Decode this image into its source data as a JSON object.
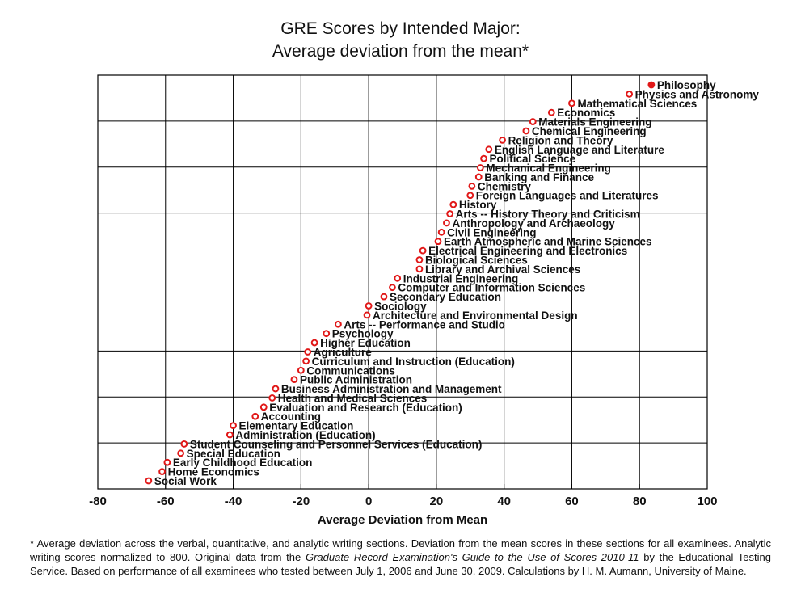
{
  "title_line1": "GRE Scores by Intended Major:",
  "title_line2": "Average deviation from the mean*",
  "footnote": {
    "part1": "* Average deviation across the verbal, quantitative, and analytic writing sections. Deviation from the mean scores in these sections for all examinees. Analytic writing scores normalized to 800. Original data from the ",
    "italic": "Graduate Record Examination's Guide to the Use of Scores 2010-11",
    "part2": " by the Educational Testing Service. Based on performance of all examinees who tested between July 1, 2006 and June 30, 2009. Calculations by H. M. Aumann, University of Maine."
  },
  "colors": {
    "marker": "#e11818",
    "grid": "#000000"
  },
  "chart_data": {
    "type": "scatter",
    "xlabel": "Average Deviation from Mean",
    "xlim": [
      -80,
      100
    ],
    "xticks": [
      -80,
      -60,
      -40,
      -20,
      0,
      20,
      40,
      60,
      80,
      100
    ],
    "grid": true,
    "highlighted": "Philosophy",
    "points": [
      {
        "label": "Philosophy",
        "x": 83.5
      },
      {
        "label": "Physics and Astronomy",
        "x": 77
      },
      {
        "label": "Mathematical Sciences",
        "x": 60
      },
      {
        "label": "Economics",
        "x": 54
      },
      {
        "label": "Materials Engineering",
        "x": 48.5
      },
      {
        "label": "Chemical Engineering",
        "x": 46.5
      },
      {
        "label": "Religion and Theory",
        "x": 39.5
      },
      {
        "label": "English Language and Literature",
        "x": 35.5
      },
      {
        "label": "Political Science",
        "x": 34
      },
      {
        "label": "Mechanical Engineering",
        "x": 33
      },
      {
        "label": "Banking and Finance",
        "x": 32.5
      },
      {
        "label": "Chemistry",
        "x": 30.5
      },
      {
        "label": "Foreign Languages and Literatures",
        "x": 30
      },
      {
        "label": "History",
        "x": 25
      },
      {
        "label": "Arts -- History Theory and Criticism",
        "x": 24
      },
      {
        "label": "Anthropology and Archaeology",
        "x": 23
      },
      {
        "label": "Civil Engineering",
        "x": 21.5
      },
      {
        "label": "Earth Atmospheric and Marine Sciences",
        "x": 20.5
      },
      {
        "label": "Electrical Engineering and Electronics",
        "x": 16
      },
      {
        "label": "Biological Sciences",
        "x": 15
      },
      {
        "label": "Library and Archival Sciences",
        "x": 15
      },
      {
        "label": "Industrial Engineering",
        "x": 8.5
      },
      {
        "label": "Computer and Information Sciences",
        "x": 7
      },
      {
        "label": "Secondary Education",
        "x": 4.5
      },
      {
        "label": "Sociology",
        "x": 0
      },
      {
        "label": "Architecture and Environmental Design",
        "x": -0.5
      },
      {
        "label": "Arts -- Performance and Studio",
        "x": -9
      },
      {
        "label": "Psychology",
        "x": -12.5
      },
      {
        "label": "Higher Education",
        "x": -16
      },
      {
        "label": "Agriculture",
        "x": -18
      },
      {
        "label": "Curriculum and Instruction (Education)",
        "x": -18.5
      },
      {
        "label": "Communications",
        "x": -20
      },
      {
        "label": "Public Administration",
        "x": -22
      },
      {
        "label": "Business Administration and Management",
        "x": -27.5
      },
      {
        "label": "Health and Medical Sciences",
        "x": -28.5
      },
      {
        "label": "Evaluation and Research (Education)",
        "x": -31
      },
      {
        "label": "Accounting",
        "x": -33.5
      },
      {
        "label": "Elementary Education",
        "x": -40
      },
      {
        "label": "Administration (Education)",
        "x": -41
      },
      {
        "label": "Student Counseling and Personnel Services (Education)",
        "x": -54.5
      },
      {
        "label": "Special Education",
        "x": -55.5
      },
      {
        "label": "Early Childhood Education",
        "x": -59.5
      },
      {
        "label": "Home Economics",
        "x": -61
      },
      {
        "label": "Social Work",
        "x": -65
      }
    ]
  }
}
